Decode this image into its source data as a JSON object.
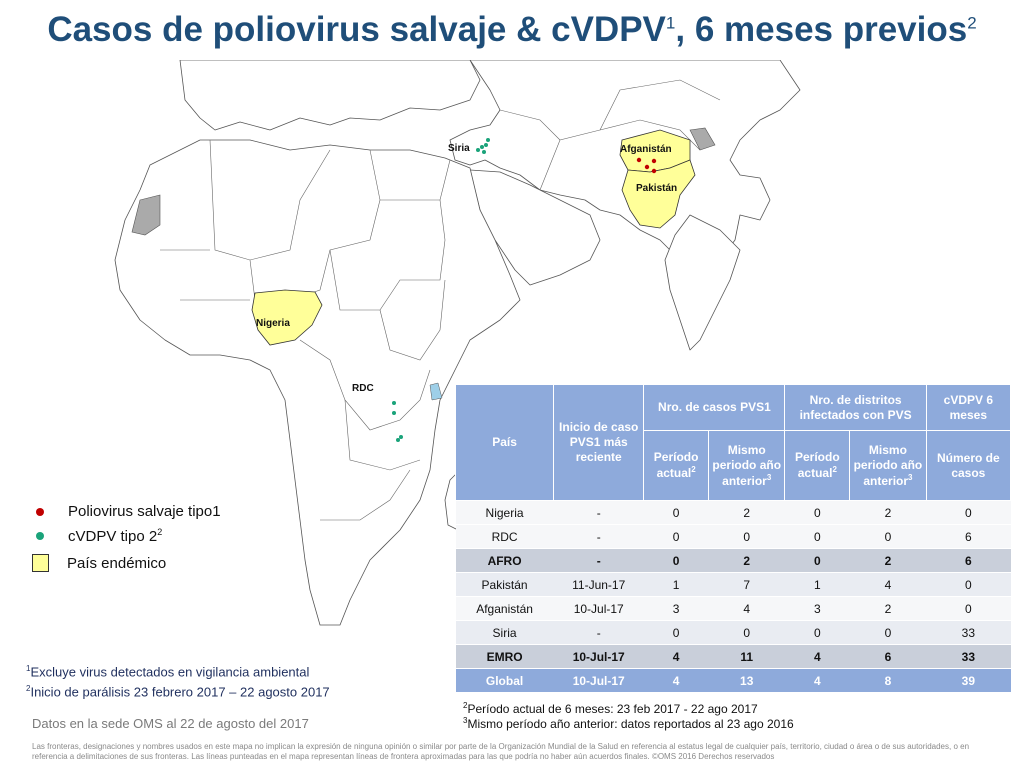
{
  "title": {
    "text": "Casos de poliovirus salvaje & cVDPV",
    "sup1": "1",
    "text2": ", 6 meses previos",
    "sup2": "2"
  },
  "map": {
    "labels": {
      "siria": "Siria",
      "afganistan": "Afganistán",
      "pakistan": "Pakistán",
      "nigeria": "Nigeria",
      "rdc": "RDC"
    },
    "colors": {
      "endemic_fill": "#ffff99",
      "land": "#ffffff",
      "border": "#555555",
      "gray": "#aaaaaa",
      "wpv1_dot": "#c00000",
      "cvdpv_dot": "#1aa37a"
    }
  },
  "legend": {
    "wpv1": "Poliovirus salvaje tipo1",
    "cvdpv": "cVDPV tipo 2",
    "cvdpv_sup": "2",
    "endemic": "País endémico"
  },
  "table": {
    "head": {
      "pais": "País",
      "inicio": "Inicio de caso PVS1 más reciente",
      "casos_group": "Nro. de casos PVS1",
      "distritos_group": "Nro. de distritos infectados con PVS",
      "cvdpv_group": "cVDPV 6 meses",
      "periodo_actual": "Período actual",
      "mismo_periodo": "Mismo periodo año anterior",
      "numero_casos": "Número de casos",
      "sup2": "2",
      "sup3": "3"
    },
    "rows": [
      {
        "pais": "Nigeria",
        "inicio": "-",
        "c_act": "0",
        "c_ant": "2",
        "d_act": "0",
        "d_ant": "2",
        "cv": "0"
      },
      {
        "pais": "RDC",
        "inicio": "-",
        "c_act": "0",
        "c_ant": "0",
        "d_act": "0",
        "d_ant": "0",
        "cv": "6"
      },
      {
        "pais": "AFRO",
        "inicio": "-",
        "c_act": "0",
        "c_ant": "2",
        "d_act": "0",
        "d_ant": "2",
        "cv": "6"
      },
      {
        "pais": "Pakistán",
        "inicio": "11-Jun-17",
        "c_act": "1",
        "c_ant": "7",
        "d_act": "1",
        "d_ant": "4",
        "cv": "0"
      },
      {
        "pais": "Afganistán",
        "inicio": "10-Jul-17",
        "c_act": "3",
        "c_ant": "4",
        "d_act": "3",
        "d_ant": "2",
        "cv": "0"
      },
      {
        "pais": "Siria",
        "inicio": "-",
        "c_act": "0",
        "c_ant": "0",
        "d_act": "0",
        "d_ant": "0",
        "cv": "33"
      },
      {
        "pais": "EMRO",
        "inicio": "10-Jul-17",
        "c_act": "4",
        "c_ant": "11",
        "d_act": "4",
        "d_ant": "6",
        "cv": "33"
      },
      {
        "pais": "Global",
        "inicio": "10-Jul-17",
        "c_act": "4",
        "c_ant": "13",
        "d_act": "4",
        "d_ant": "8",
        "cv": "39"
      }
    ]
  },
  "footnotes": {
    "fn1_sup": "1",
    "fn1": "Excluye virus detectados en vigilancia ambiental",
    "fn2_sup": "2",
    "fn2": "Inicio de parálisis 23 febrero 2017 – 22 agosto 2017",
    "fnr2_sup": "2",
    "fnr2": "Período actual de 6 meses:  23 feb 2017 - 22 ago 2017",
    "fnr3_sup": "3",
    "fnr3": "Mismo período año anterior: datos reportados al 23 ago 2016"
  },
  "as_of": "Datos en la sede OMS al 22 de agosto del 2017",
  "disclaimer": "Las fronteras, designaciones y nombres usados en este mapa no implican la expresión de ninguna opinión o similar por parte de la Organización Mundial de la Salud en referencia al estatus legal de cualquier país, territorio, ciudad o área o de sus autoridades, o en referencia a delimitaciones de sus fronteras. Las líneas punteadas en el mapa representan líneas de  frontera aproximadas para las que podría no haber  aún acuerdos finales. ©OMS 2016  Derechos reservados"
}
